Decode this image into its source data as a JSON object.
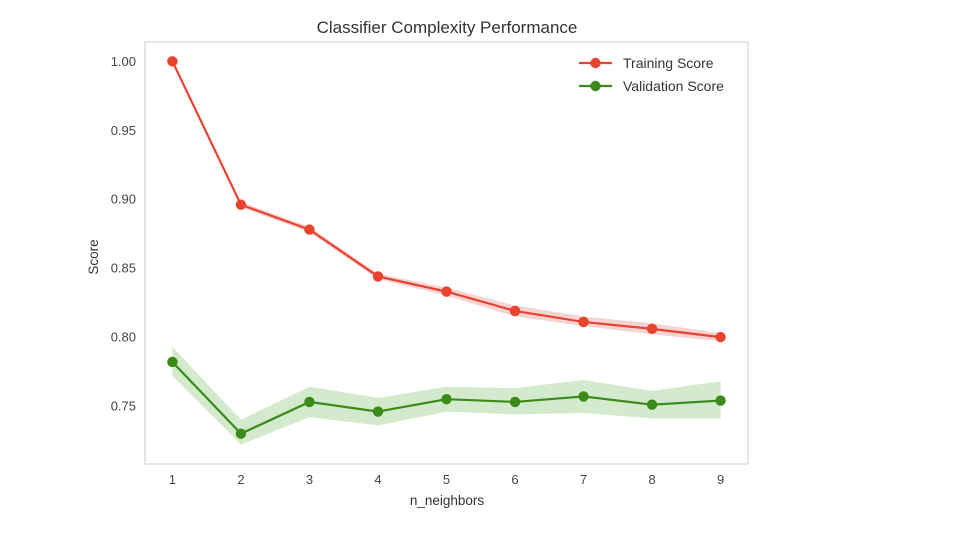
{
  "chart_data": {
    "type": "line",
    "title": "Classifier Complexity Performance",
    "xlabel": "n_neighbors",
    "ylabel": "Score",
    "x": [
      1,
      2,
      3,
      4,
      5,
      6,
      7,
      8,
      9
    ],
    "xticks": [
      "1",
      "2",
      "3",
      "4",
      "5",
      "6",
      "7",
      "8",
      "9"
    ],
    "yticks": [
      "0.75",
      "0.80",
      "0.85",
      "0.90",
      "0.95",
      "1.00"
    ],
    "xlim": [
      0.6,
      9.4
    ],
    "ylim": [
      0.708,
      1.014
    ],
    "grid": false,
    "legend_position": "top-right",
    "series": [
      {
        "name": "Training Score",
        "color": "#e8432f",
        "band_color": "#f0b8b8",
        "values": [
          1.0,
          0.896,
          0.878,
          0.844,
          0.833,
          0.819,
          0.811,
          0.806,
          0.8
        ],
        "lower": [
          1.0,
          0.894,
          0.876,
          0.842,
          0.83,
          0.815,
          0.808,
          0.802,
          0.797
        ],
        "upper": [
          1.0,
          0.898,
          0.88,
          0.846,
          0.836,
          0.823,
          0.815,
          0.81,
          0.803
        ]
      },
      {
        "name": "Validation Score",
        "color": "#3b8a1a",
        "band_color": "#b7dcaa",
        "values": [
          0.782,
          0.73,
          0.753,
          0.746,
          0.755,
          0.753,
          0.757,
          0.751,
          0.754
        ],
        "lower": [
          0.772,
          0.722,
          0.742,
          0.736,
          0.746,
          0.744,
          0.745,
          0.741,
          0.741
        ],
        "upper": [
          0.793,
          0.74,
          0.764,
          0.756,
          0.764,
          0.763,
          0.769,
          0.761,
          0.768
        ]
      }
    ]
  }
}
